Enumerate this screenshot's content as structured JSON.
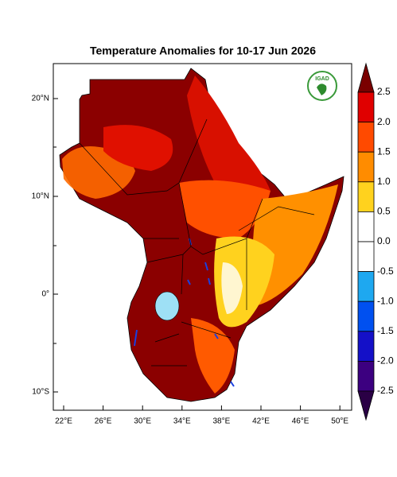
{
  "title": "Temperature Anomalies for 10-17 Jun 2026",
  "logo": {
    "text": "IGAD"
  },
  "lat_ticks": [
    "20°N",
    "10°N",
    "0°",
    "10°S"
  ],
  "lon_ticks": [
    "22°E",
    "26°E",
    "30°E",
    "34°E",
    "38°E",
    "42°E",
    "46°E",
    "50°E"
  ],
  "colorbar": {
    "labels": [
      "2.5",
      "2.0",
      "1.5",
      "1.0",
      "0.5",
      "0.0",
      "-0.5",
      "-1.0",
      "-1.5",
      "-2.0",
      "-2.5"
    ],
    "colors": [
      "#7a0000",
      "#e00000",
      "#ff4a00",
      "#ff8c00",
      "#ffd21e",
      "#ffffff",
      "#ffffff",
      "#1ea8f0",
      "#0050f0",
      "#1410c8",
      "#3c0080",
      "#2a0045"
    ]
  }
}
